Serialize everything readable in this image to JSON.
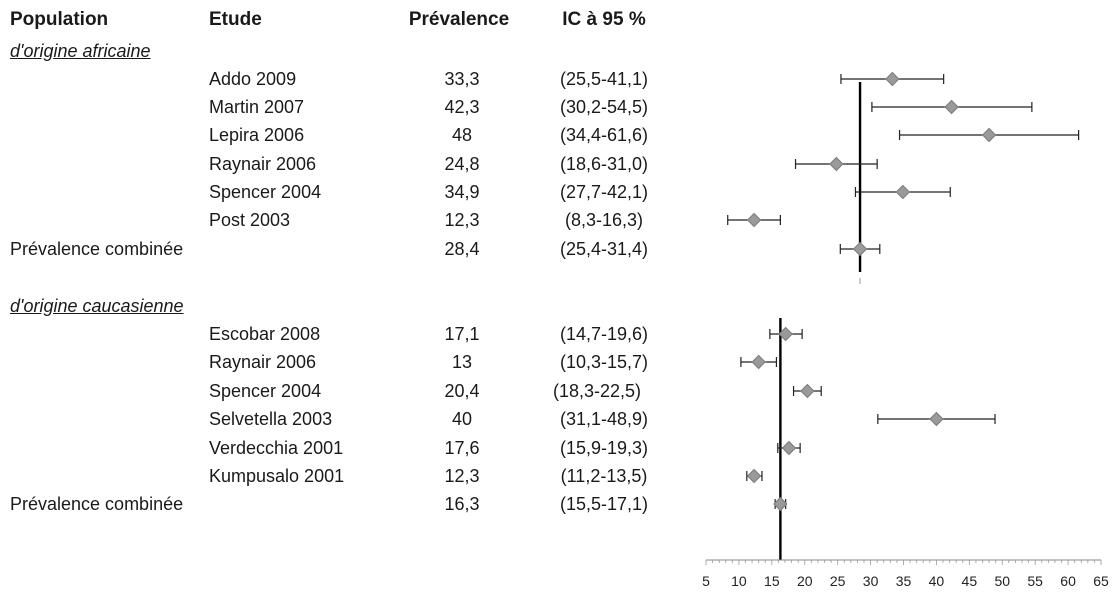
{
  "header": {
    "population": "Population",
    "study": "Etude",
    "prevalence": "Prévalence",
    "ci": "IC à 95 %"
  },
  "groups": [
    {
      "label": "d'origine africaine",
      "studies": [
        {
          "study": "Addo 2009",
          "prevalence": "33,3",
          "ci": "(25,5-41,1)"
        },
        {
          "study": "Martin 2007",
          "prevalence": "42,3",
          "ci": "(30,2-54,5)"
        },
        {
          "study": "Lepira 2006",
          "prevalence": "48",
          "ci": "(34,4-61,6)"
        },
        {
          "study": "Raynair 2006",
          "prevalence": "24,8",
          "ci": "(18,6-31,0)"
        },
        {
          "study": "Spencer 2004",
          "prevalence": "34,9",
          "ci": "(27,7-42,1)"
        },
        {
          "study": "Post 2003",
          "prevalence": "12,3",
          "ci": "(8,3-16,3)"
        }
      ],
      "combined": {
        "label": "Prévalence combinée",
        "prevalence": "28,4",
        "ci": "(25,4-31,4)"
      }
    },
    {
      "label": "d'origine caucasienne",
      "studies": [
        {
          "study": "Escobar 2008",
          "prevalence": "17,1",
          "ci": "(14,7-19,6)"
        },
        {
          "study": "Raynair 2006",
          "prevalence": "13",
          "ci": "(10,3-15,7)"
        },
        {
          "study": "Spencer 2004",
          "prevalence": "20,4",
          "ci": "(18,3-22,5)"
        },
        {
          "study": "Selvetella 2003",
          "prevalence": "40",
          "ci": "(31,1-48,9)"
        },
        {
          "study": "Verdecchia 2001",
          "prevalence": "17,6",
          "ci": "(15,9-19,3)"
        },
        {
          "study": "Kumpusalo 2001",
          "prevalence": "12,3",
          "ci": "(11,2-13,5)"
        }
      ],
      "combined": {
        "label": "Prévalence combinée",
        "prevalence": "16,3",
        "ci": "(15,5-17,1)"
      }
    }
  ],
  "chart_data": {
    "type": "forest",
    "xlim": [
      5,
      65
    ],
    "xticks": [
      5,
      10,
      15,
      20,
      25,
      30,
      35,
      40,
      45,
      50,
      55,
      60,
      65
    ],
    "series": [
      {
        "name": "d'origine africaine",
        "points": [
          {
            "label": "Addo 2009",
            "value": 33.3,
            "low": 25.5,
            "high": 41.1
          },
          {
            "label": "Martin 2007",
            "value": 42.3,
            "low": 30.2,
            "high": 54.5
          },
          {
            "label": "Lepira 2006",
            "value": 48,
            "low": 34.4,
            "high": 61.6
          },
          {
            "label": "Raynair 2006",
            "value": 24.8,
            "low": 18.6,
            "high": 31.0
          },
          {
            "label": "Spencer 2004",
            "value": 34.9,
            "low": 27.7,
            "high": 42.1
          },
          {
            "label": "Post 2003",
            "value": 12.3,
            "low": 8.3,
            "high": 16.3
          }
        ],
        "combined": {
          "value": 28.4,
          "low": 25.4,
          "high": 31.4
        }
      },
      {
        "name": "d'origine caucasienne",
        "points": [
          {
            "label": "Escobar 2008",
            "value": 17.1,
            "low": 14.7,
            "high": 19.6
          },
          {
            "label": "Raynair 2006",
            "value": 13,
            "low": 10.3,
            "high": 15.7
          },
          {
            "label": "Spencer 2004",
            "value": 20.4,
            "low": 18.3,
            "high": 22.5
          },
          {
            "label": "Selvetella 2003",
            "value": 40,
            "low": 31.1,
            "high": 48.9
          },
          {
            "label": "Verdecchia 2001",
            "value": 17.6,
            "low": 15.9,
            "high": 19.3
          },
          {
            "label": "Kumpusalo 2001",
            "value": 12.3,
            "low": 11.2,
            "high": 13.5
          }
        ],
        "combined": {
          "value": 16.3,
          "low": 15.5,
          "high": 17.1
        }
      }
    ],
    "colors": {
      "marker": "#9a9a9a",
      "line": "#000000"
    }
  }
}
